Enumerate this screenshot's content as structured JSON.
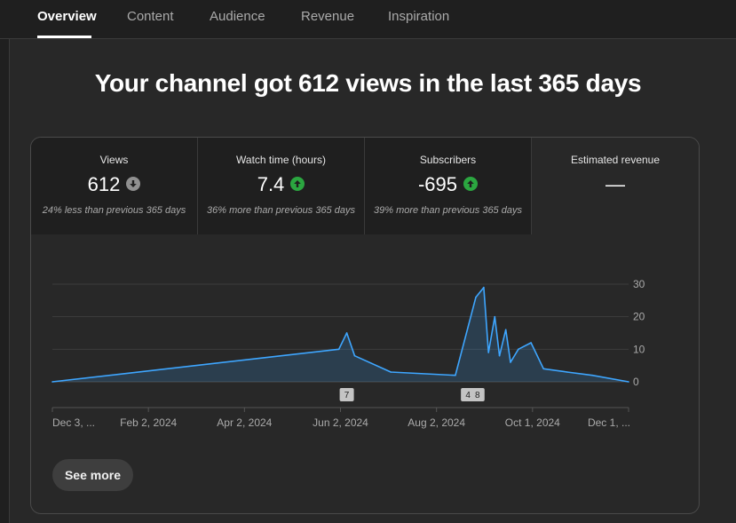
{
  "tabs": [
    {
      "label": "Overview",
      "active": true
    },
    {
      "label": "Content",
      "active": false
    },
    {
      "label": "Audience",
      "active": false
    },
    {
      "label": "Revenue",
      "active": false
    },
    {
      "label": "Inspiration",
      "active": false
    }
  ],
  "headline": "Your channel got 612 views in the last 365 days",
  "metrics": [
    {
      "label": "Views",
      "value": "612",
      "trend": "down",
      "comparison": "24% less than previous 365 days"
    },
    {
      "label": "Watch time (hours)",
      "value": "7.4",
      "trend": "up",
      "comparison": "36% more than previous 365 days"
    },
    {
      "label": "Subscribers",
      "value": "-695",
      "trend": "up",
      "comparison": "39% more than previous 365 days"
    },
    {
      "label": "Estimated revenue",
      "value": "—",
      "trend": "",
      "comparison": ""
    }
  ],
  "colors": {
    "line": "#3ea6ff",
    "trend_up": "#2ba640",
    "trend_down": "#909090"
  },
  "chart_data": {
    "type": "line",
    "x": [
      "Dec 3, 2023",
      "Jun 2, 2024",
      "Jun 7, 2024",
      "Jun 12, 2024",
      "Jul 5, 2024",
      "Aug 15, 2024",
      "Aug 28, 2024",
      "Sep 2, 2024",
      "Sep 5, 2024",
      "Sep 9, 2024",
      "Sep 12, 2024",
      "Sep 16, 2024",
      "Sep 19, 2024",
      "Sep 24, 2024",
      "Oct 2, 2024",
      "Oct 10, 2024",
      "Oct 25, 2024",
      "Nov 10, 2024",
      "Dec 3, 2024"
    ],
    "y": [
      0,
      10,
      15,
      8,
      3,
      2,
      26,
      29,
      9,
      20,
      8,
      16,
      6,
      10,
      12,
      4,
      3,
      2,
      0
    ],
    "ylim": [
      0,
      30
    ],
    "yticks": [
      0,
      10,
      20,
      30
    ],
    "xtick_labels": [
      "Dec 3, ...",
      "Feb 2, 2024",
      "Apr 2, 2024",
      "Jun 2, 2024",
      "Aug 2, 2024",
      "Oct 1, 2024",
      "Dec 1, ..."
    ],
    "annotations": [
      {
        "label": "7",
        "date": "Jun 7, 2024"
      },
      {
        "label": "4",
        "date": "Aug 23, 2024"
      },
      {
        "label": "8",
        "date": "Aug 29, 2024"
      }
    ],
    "grid": true
  },
  "see_more_label": "See more"
}
